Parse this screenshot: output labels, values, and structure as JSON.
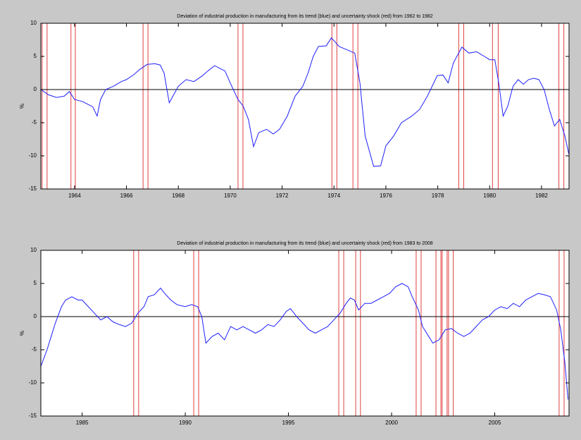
{
  "chart_data": [
    {
      "type": "line",
      "title": "Deviation of industrial production in manufacturing from its trend (blue) and uncertainty shock (red) from 1962 to 1982",
      "y_label": "%",
      "color": "#2020ff",
      "shock_color": "#e04040",
      "xlim": [
        1962.7,
        1983.06
      ],
      "xticks": [
        1964,
        1966,
        1968,
        1970,
        1972,
        1974,
        1976,
        1978,
        1980,
        1982
      ],
      "ylim": [
        -15,
        10
      ],
      "yticks": [
        -15,
        -10,
        -5,
        0,
        5,
        10
      ],
      "x": [
        1962.7,
        1963.0,
        1963.3,
        1963.6,
        1963.8,
        1964.0,
        1964.3,
        1964.5,
        1964.7,
        1964.87,
        1965.0,
        1965.2,
        1965.5,
        1965.8,
        1966.0,
        1966.3,
        1966.5,
        1966.8,
        1967.1,
        1967.3,
        1967.45,
        1967.65,
        1968.0,
        1968.3,
        1968.6,
        1968.9,
        1969.2,
        1969.4,
        1969.8,
        1970.0,
        1970.3,
        1970.5,
        1970.7,
        1970.9,
        1971.1,
        1971.4,
        1971.66,
        1971.9,
        1972.2,
        1972.5,
        1972.8,
        1973.0,
        1973.2,
        1973.4,
        1973.7,
        1973.9,
        1974.2,
        1974.5,
        1974.8,
        1975.0,
        1975.2,
        1975.53,
        1975.8,
        1976.0,
        1976.3,
        1976.6,
        1977.0,
        1977.3,
        1977.6,
        1977.98,
        1978.2,
        1978.4,
        1978.6,
        1978.93,
        1979.2,
        1979.5,
        1979.8,
        1980.0,
        1980.2,
        1980.35,
        1980.52,
        1980.7,
        1980.9,
        1981.1,
        1981.3,
        1981.5,
        1981.7,
        1981.9,
        1982.1,
        1982.3,
        1982.5,
        1982.7,
        1982.9,
        1983.05
      ],
      "values": [
        0,
        -0.8,
        -1.2,
        -1.0,
        -0.3,
        -1.5,
        -1.8,
        -2.2,
        -2.6,
        -4.0,
        -1.5,
        0,
        0.5,
        1.2,
        1.5,
        2.3,
        3.0,
        3.8,
        3.9,
        3.7,
        2.5,
        -2.0,
        0.5,
        1.5,
        1.2,
        2.0,
        3.0,
        3.6,
        2.8,
        1.0,
        -1.5,
        -2.5,
        -4.5,
        -8.6,
        -6.5,
        -6.0,
        -6.7,
        -6.0,
        -4.0,
        -1.0,
        0.5,
        2.5,
        5.0,
        6.5,
        6.6,
        7.8,
        6.5,
        6.0,
        5.5,
        1.0,
        -7.0,
        -11.6,
        -11.5,
        -8.5,
        -7.0,
        -5.0,
        -4.0,
        -3.0,
        -1.0,
        2.1,
        2.2,
        1.0,
        4.0,
        6.4,
        5.5,
        5.7,
        5.0,
        4.5,
        4.5,
        1.0,
        -4.0,
        -2.5,
        0.5,
        1.5,
        0.8,
        1.5,
        1.7,
        1.5,
        0,
        -3.0,
        -5.5,
        -4.5,
        -7.0,
        -9.7
      ],
      "shocks": [
        [
          1962.75,
          1962.94
        ],
        [
          1963.86,
          1964.03
        ],
        [
          1966.64,
          1966.83
        ],
        [
          1970.3,
          1970.49
        ],
        [
          1973.92,
          1974.11
        ],
        [
          1974.73,
          1974.92
        ],
        [
          1978.81,
          1979.0
        ],
        [
          1980.11,
          1980.33
        ],
        [
          1982.67,
          1982.86
        ]
      ]
    },
    {
      "type": "line",
      "title": "Deviation of industrial production in manufacturing from its trend (blue) and uncertainty shock (red) from 1983 to 2008",
      "y_label": "%",
      "color": "#2020ff",
      "shock_color": "#e04040",
      "xlim": [
        1983.0,
        2008.6
      ],
      "xticks": [
        1985,
        1990,
        1995,
        2000,
        2005
      ],
      "ylim": [
        -15,
        10
      ],
      "yticks": [
        -15,
        -10,
        -5,
        0,
        5,
        10
      ],
      "x": [
        1983.0,
        1983.3,
        1983.5,
        1983.7,
        1984.0,
        1984.2,
        1984.5,
        1984.8,
        1985.0,
        1985.3,
        1985.6,
        1985.9,
        1986.2,
        1986.5,
        1986.8,
        1987.1,
        1987.4,
        1987.7,
        1988.0,
        1988.2,
        1988.5,
        1988.8,
        1989.0,
        1989.3,
        1989.6,
        1990.0,
        1990.3,
        1990.6,
        1990.8,
        1991.0,
        1991.3,
        1991.6,
        1991.9,
        1992.2,
        1992.5,
        1992.8,
        1993.1,
        1993.4,
        1993.7,
        1994.0,
        1994.3,
        1994.6,
        1994.9,
        1995.1,
        1995.4,
        1995.7,
        1996.0,
        1996.3,
        1996.6,
        1996.9,
        1997.2,
        1997.5,
        1997.8,
        1998.0,
        1998.2,
        1998.4,
        1998.7,
        1999.0,
        1999.3,
        1999.6,
        1999.9,
        2000.2,
        2000.5,
        2000.8,
        2001.0,
        2001.3,
        2001.5,
        2001.8,
        2002.0,
        2002.3,
        2002.6,
        2002.9,
        2003.2,
        2003.5,
        2003.8,
        2004.1,
        2004.4,
        2004.7,
        2005.0,
        2005.3,
        2005.6,
        2005.9,
        2006.2,
        2006.5,
        2006.8,
        2007.1,
        2007.4,
        2007.7,
        2008.0,
        2008.2,
        2008.4,
        2008.55
      ],
      "values": [
        -7.5,
        -5,
        -3,
        -1,
        1.5,
        2.5,
        3.0,
        2.5,
        2.5,
        1.5,
        0.5,
        -0.5,
        0,
        -0.8,
        -1.2,
        -1.5,
        -1,
        0.5,
        1.5,
        3,
        3.3,
        4.3,
        3.5,
        2.5,
        1.8,
        1.5,
        1.8,
        1.5,
        0,
        -4,
        -3,
        -2.5,
        -3.5,
        -1.5,
        -2,
        -1.5,
        -2,
        -2.5,
        -2,
        -1.2,
        -1.5,
        -0.5,
        0.8,
        1.2,
        0,
        -1,
        -2,
        -2.5,
        -2,
        -1.5,
        -0.5,
        0.5,
        2,
        2.8,
        2.5,
        1,
        2,
        2,
        2.5,
        3,
        3.5,
        4.5,
        5,
        4.5,
        3,
        1,
        -1.5,
        -3,
        -4,
        -3.5,
        -2,
        -1.8,
        -2.5,
        -3,
        -2.5,
        -1.5,
        -0.5,
        0,
        1,
        1.5,
        1.2,
        2,
        1.5,
        2.5,
        3,
        3.5,
        3.3,
        3,
        1,
        -2,
        -7,
        -12.5
      ],
      "shocks": [
        [
          1987.5,
          1987.74
        ],
        [
          1990.41,
          1990.65
        ],
        [
          1997.44,
          1997.68
        ],
        [
          1998.26,
          1998.49
        ],
        [
          2001.19,
          2001.43
        ],
        [
          2002.15,
          2002.39
        ],
        [
          2002.45,
          2002.69
        ],
        [
          2002.76,
          2002.99
        ],
        [
          2008.12,
          2008.36
        ]
      ]
    }
  ]
}
